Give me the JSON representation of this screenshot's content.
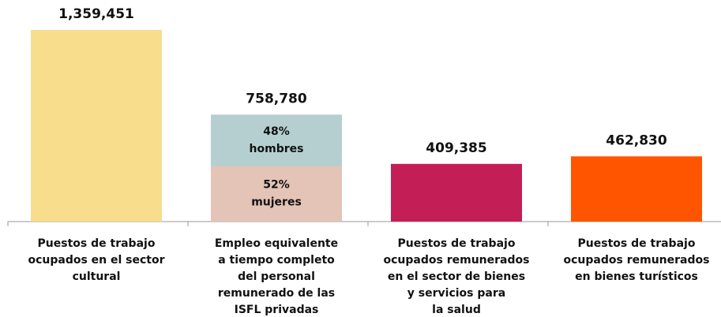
{
  "chart_data": {
    "type": "bar",
    "categories": [
      [
        "Puestos de trabajo",
        "ocupados en el sector",
        "cultural"
      ],
      [
        "Empleo equivalente",
        "a tiempo completo",
        "del personal",
        "remunerado de las",
        "ISFL privadas"
      ],
      [
        "Puestos de trabajo",
        "ocupados remunerados",
        "en el sector de bienes",
        "y servicios para",
        "la salud"
      ],
      [
        "Puestos de trabajo",
        "ocupados remunerados",
        "en bienes turísticos"
      ]
    ],
    "values": [
      1359451,
      758780,
      409385,
      462830
    ],
    "value_labels": [
      "1,359,451",
      "758,780",
      "409,385",
      "462,830"
    ],
    "colors": [
      "#f7dd8c",
      null,
      "#c41e56",
      "#ff5500"
    ],
    "stack": {
      "index": 1,
      "segments": [
        {
          "name": "mujeres",
          "value": 52,
          "value_label": "52%",
          "color": "#e3c4b7"
        },
        {
          "name": "hombres",
          "value": 48,
          "value_label": "48%",
          "color": "#b5cfd0"
        }
      ]
    }
  }
}
